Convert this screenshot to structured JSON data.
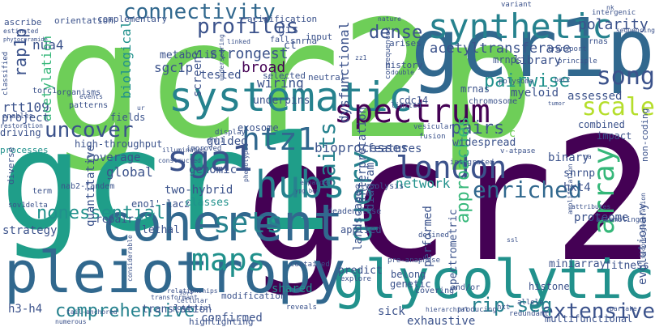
{
  "cloud": {
    "words": {
      "gcr2": "gcr2",
      "gcr2p": "gcr2p",
      "gcr1": "gcr1",
      "gcr1p": "gcr1p",
      "pleiotropy": "pleiotropy",
      "glycolytic": "glycolytic",
      "coherent": "coherent",
      "systematic": "systematic",
      "spectrum": "spectrum",
      "synthetic": "synthetic",
      "connectivity": "connectivity",
      "profiles": "profiles",
      "dense": "dense",
      "acetyltransferase": "acetyltransferase",
      "polarity": "polarity",
      "song": "song",
      "scale": "scale",
      "array": "array",
      "query": "query",
      "hubs": "hubs",
      "london": "london",
      "enriched": "enriched",
      "maps": "maps",
      "sets": "sets",
      "sga1": "sga1",
      "htz1": "htz1",
      "uncover": "uncover",
      "pairwise": "pairwise",
      "pairs": "pairs",
      "baits": "baits",
      "approaches": "approaches",
      "nonessential": "nonessential",
      "comprehensive": "comprehensive",
      "extensive": "extensive",
      "rip_seq": "rip-seq",
      "strongest": "strongest",
      "broad": "broad",
      "wiring": "wiring",
      "sgc1p": "sgc1p",
      "rap1p": "rap1p",
      "rtt109": "rtt109",
      "nua4": "nua4",
      "acetylation": "acetylation",
      "biological": "biological",
      "dysfunctional": "dysfunctional",
      "myeloid": "myeloid",
      "library": "library",
      "mrnps": "mrnps",
      "mrnas": "mrnas",
      "cdc14": "cdc14",
      "assessed": "assessed",
      "combined": "combined",
      "impact": "impact",
      "swr_c": "swr-c",
      "widespread": "widespread",
      "bioprocesses": "bioprocesses",
      "guided": "guided",
      "exosome": "exosome",
      "features": "features",
      "network": "network",
      "hxt4": "hxt4",
      "snrnp": "snrnp",
      "binary": "binary",
      "evolutionary": "evolutionary",
      "proteome": "proteome",
      "miniarray": "miniarray",
      "fitness": "fitness",
      "histone": "histone",
      "multifunctional": "multifunctional",
      "shared": "shared",
      "sick": "sick",
      "confirmed": "confirmed",
      "exhaustive": "exhaustive",
      "diagram": "diagram",
      "interpretation": "interpretation",
      "landscape": "landscape",
      "spectrometric": "spectrometric",
      "performed": "performed",
      "predict": "predict",
      "belong": "belong",
      "genetic": "genetic",
      "global": "global",
      "coverage": "coverage",
      "two_hybrid": "two-hybrid",
      "genomic": "genomic",
      "eno1_lacz": "eno1'-lacz",
      "classes": "classes",
      "applied": "applied",
      "quantitative": "quantitative",
      "high_throughput": "high-throughput",
      "project": "project",
      "fields": "fields",
      "driving": "driving",
      "processes": "processes",
      "diverse": "diverse",
      "strategy": "strategy",
      "repair": "repair",
      "lethal": "lethal",
      "h3_h4": "h3-h4",
      "translation": "translation",
      "highlighting": "highlighting",
      "modification": "modification",
      "screens": "screens",
      "tested": "tested",
      "metabolic": "metabolic",
      "gis": "gis",
      "underpins": "underpins",
      "selected": "selected",
      "input": "input",
      "neutral": "neutral",
      "history": "history",
      "arises": "arises",
      "complementary": "complementary",
      "orientation": "orientation",
      "acidification": "acidification",
      "snrna": "snrna",
      "fall": "fall",
      "ascribe": "ascribe",
      "estimated": "estimated",
      "classified": "classified",
      "torc1": "torc1",
      "enables": "enables",
      "restoration": "restoration",
      "term": "term",
      "sov1delta": "sov1delta",
      "nab2_tandem": "nab2-tandem",
      "organisms": "organisms",
      "patterns": "patterns",
      "events": "events",
      "improved": "improved",
      "display": "display",
      "dhh1": "dhh1",
      "constructed": "constructed",
      "illuminated": "illuminated",
      "phenotypes": "phenotypes",
      "glycolysis": "glycolysis",
      "deadenylase": "deadenylase",
      "expanded": "expanded",
      "contained": "contained",
      "explore": "explore",
      "covering": "covering",
      "and_or": "and/or",
      "reveals": "reveals",
      "producing": "producing",
      "hxt": "hxt",
      "redundant": "redundant",
      "allele": "allele",
      "potential": "potential",
      "transformant": "transformant",
      "relationships": "relationships",
      "considerable": "considerable",
      "numerous": "numerous",
      "tail_anchored": "tail-anchored",
      "fusion": "fusion",
      "vesicular": "vesicular",
      "v_atpase": "v-atpase",
      "integrated": "integrated",
      "limited": "limited",
      "chromosome": "chromosome",
      "polysome": "polysome",
      "amplification": "amplification",
      "attributes": "attributes",
      "assembling": "assembling",
      "pre_anaphase": "pre-anaphase",
      "hierarchial": "hierarchial",
      "second_generation": "second-generation",
      "non_coding": "non-coding",
      "intergenic": "intergenic",
      "rnas": "rnas",
      "sequencing": "sequencing",
      "transport": "transport",
      "principle": "principle",
      "double": "double",
      "nature": "nature",
      "consequences": "consequences",
      "ct": "ct",
      "defined": "defined",
      "partake": "partake",
      "variant": "variant",
      "phytoceramide": "phytoceramide",
      "cellular": "cellular",
      "linked": "linked",
      "underscoring": "underscoring",
      "zz1": "zz1",
      "bat2": "bat2",
      "ssl": "ssl",
      "nk": "nk",
      "pa": "pa",
      "tumor": "tumor",
      "ur": "ur",
      "ypg_box": "ypg box",
      "sov4": "sov4"
    },
    "palette": {
      "dark_purple": "#440154",
      "indigo": "#3b528b",
      "blue": "#31688e",
      "teal_blue": "#26828e",
      "teal": "#21918c",
      "green_teal": "#1f9e89",
      "green": "#35b779",
      "light_green": "#6ece58",
      "lime": "#b5de2b",
      "yellow": "#fde725"
    }
  }
}
